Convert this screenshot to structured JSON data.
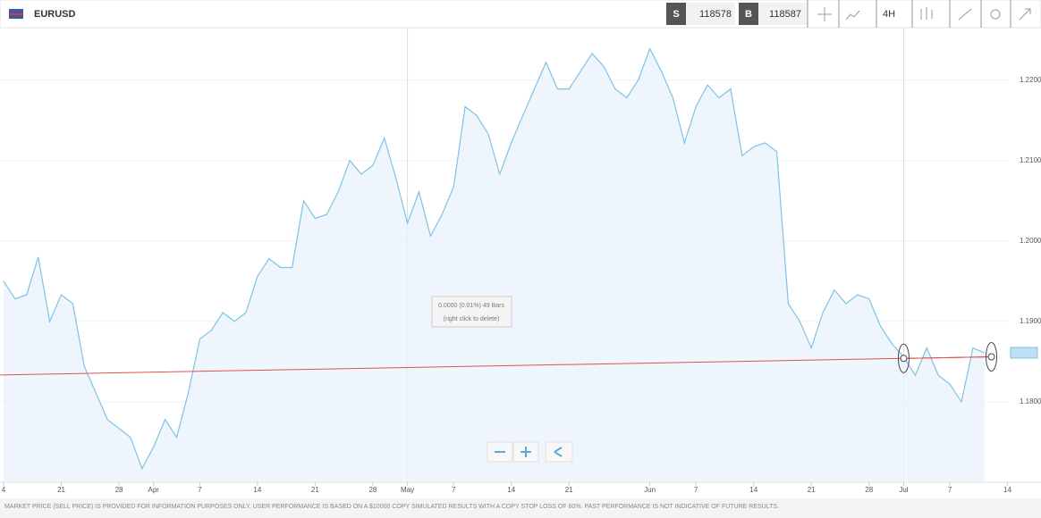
{
  "toolbar": {
    "symbol": "EURUSD",
    "sell_label": "S",
    "sell": "118578",
    "buy_label": "B",
    "buy": "118587",
    "timeframe": "4H"
  },
  "chart_data": {
    "type": "area",
    "x": [
      0,
      1,
      2,
      3,
      4,
      5,
      6,
      7,
      8,
      9,
      10,
      11,
      12,
      13,
      14,
      15,
      16,
      17,
      18,
      19,
      20,
      21,
      22,
      23,
      24,
      25,
      26,
      27,
      28,
      29,
      30,
      31,
      32,
      33,
      34,
      35,
      36,
      37,
      38,
      39,
      40,
      41,
      42,
      43,
      44,
      45,
      46,
      47,
      48,
      49,
      50,
      51,
      52,
      53,
      54,
      55,
      56,
      57,
      58,
      59,
      60,
      61,
      62,
      63,
      64,
      65,
      66,
      67,
      68,
      69,
      70,
      71,
      72,
      73,
      74,
      75,
      76,
      77,
      78,
      79,
      80,
      81,
      82,
      83,
      84,
      85
    ],
    "series": [
      {
        "name": "EURUSD",
        "color": "#7ec3e6",
        "values": [
          1.195,
          1.1928,
          1.1933,
          1.198,
          1.19,
          1.1933,
          1.1922,
          1.1844,
          1.1811,
          1.1778,
          1.1767,
          1.1756,
          1.1717,
          1.1744,
          1.1778,
          1.1756,
          1.1811,
          1.1878,
          1.1889,
          1.1911,
          1.19,
          1.1911,
          1.1956,
          1.1978,
          1.1967,
          1.1967,
          1.205,
          1.2028,
          1.2033,
          1.2061,
          1.21,
          1.2083,
          1.2094,
          1.2128,
          1.2078,
          1.2022,
          1.2061,
          1.2006,
          1.2033,
          1.2067,
          1.2167,
          1.2156,
          1.2133,
          1.2083,
          1.2122,
          1.2156,
          1.2189,
          1.2222,
          1.2189,
          1.2189,
          1.2211,
          1.2233,
          1.2217,
          1.2189,
          1.2178,
          1.22,
          1.2239,
          1.2211,
          1.2178,
          1.2122,
          1.2167,
          1.2194,
          1.2178,
          1.2189,
          1.2106,
          1.2117,
          1.2122,
          1.2111,
          1.1922,
          1.19,
          1.1867,
          1.1911,
          1.1939,
          1.1922,
          1.1933,
          1.1928,
          1.1894,
          1.1872,
          1.1856,
          1.1833,
          1.1867,
          1.1833,
          1.1822,
          1.18,
          1.1867,
          1.1861
        ]
      }
    ],
    "xlim": [
      -0.31,
      89.9
    ],
    "xticks": [
      {
        "value": 0,
        "label": "4"
      },
      {
        "value": 5,
        "label": "21"
      },
      {
        "value": 10,
        "label": "28"
      },
      {
        "value": 13,
        "label": "Apr"
      },
      {
        "value": 17,
        "label": "7"
      },
      {
        "value": 22,
        "label": "14"
      },
      {
        "value": 27,
        "label": "21"
      },
      {
        "value": 32,
        "label": "28"
      },
      {
        "value": 35,
        "label": "May"
      },
      {
        "value": 39,
        "label": "7"
      },
      {
        "value": 44,
        "label": "14"
      },
      {
        "value": 49,
        "label": "21"
      },
      {
        "value": 56,
        "label": "Jun"
      },
      {
        "value": 60,
        "label": "7"
      },
      {
        "value": 65,
        "label": "14"
      },
      {
        "value": 70,
        "label": "21"
      },
      {
        "value": 75,
        "label": "28"
      },
      {
        "value": 78,
        "label": "Jul"
      },
      {
        "value": 82,
        "label": "7"
      },
      {
        "value": 87,
        "label": "14"
      }
    ],
    "ylim": [
      1.17,
      1.2264
    ],
    "yticks": [
      {
        "value": 1.18,
        "label": "1.1800"
      },
      {
        "value": 1.19,
        "label": "1.1900"
      },
      {
        "value": 1.2,
        "label": "1.2000"
      },
      {
        "value": 1.21,
        "label": "1.2100"
      },
      {
        "value": 1.22,
        "label": "1.2200"
      }
    ],
    "trendline": {
      "color": "#e05050",
      "x": [
        78,
        85.6
      ],
      "y": [
        1.1854,
        1.1856
      ]
    },
    "annotations": [
      "0.0000 (0.01%) 49 Bars",
      "(right click to delete)"
    ]
  },
  "footer": "MARKET PRICE (SELL PRICE) IS PROVIDED FOR INFORMATION PURPOSES ONLY. USER PERFORMANCE IS BASED ON A $10000 COPY SIMULATED RESULTS WITH A COPY STOP LOSS OF 60%. PAST PERFORMANCE IS NOT INDICATIVE OF FUTURE RESULTS."
}
